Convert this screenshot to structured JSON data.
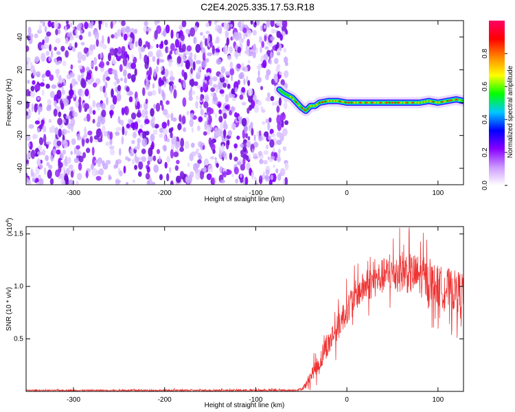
{
  "title": "C2E4.2025.335.17.53.R18",
  "chart_data": [
    {
      "type": "heatmap",
      "xlabel": "Height of straight line (km)",
      "ylabel": "Frequency (Hz)",
      "xlim": [
        -352,
        128
      ],
      "ylim": [
        -50,
        50
      ],
      "xticks": [
        -300,
        -200,
        -100,
        0,
        100
      ],
      "yticks": [
        -40,
        -20,
        0,
        20,
        40
      ],
      "noise_region_x": [
        -352,
        -72
      ],
      "signal_track": {
        "x": [
          -74,
          -70,
          -60,
          -50,
          -45,
          -40,
          -35,
          -30,
          -20,
          -10,
          0,
          20,
          40,
          60,
          80,
          90,
          100,
          110,
          120,
          128
        ],
        "y": [
          8,
          6,
          3,
          -3,
          -5,
          -2,
          -2,
          0,
          1,
          1,
          0,
          0,
          0,
          0,
          0,
          1,
          0,
          1,
          2,
          1
        ]
      },
      "colorbar": {
        "label": "Normalized spectral amplitude",
        "range": [
          0,
          1
        ],
        "ticks": [
          "0.0",
          "0.2",
          "0.4",
          "0.6",
          "0.8"
        ],
        "colors": [
          "#ffffff",
          "#cc99ff",
          "#8800ff",
          "#0000ff",
          "#00c8ff",
          "#00ff00",
          "#ffff00",
          "#ff8800",
          "#ff0000",
          "#ff0066"
        ]
      }
    },
    {
      "type": "line",
      "xlabel": "Height of straight line (km)",
      "ylabel": "SNR (10 * v/v)",
      "y_multiplier": "(x10",
      "y_multiplier_exp": "4",
      "y_multiplier_close": ")",
      "xlim": [
        -352,
        128
      ],
      "ylim": [
        0,
        1.57
      ],
      "xticks": [
        -300,
        -200,
        -100,
        0,
        100
      ],
      "yticks": [
        "0.5",
        "1.0",
        "1.5"
      ],
      "ytick_values": [
        0.5,
        1.0,
        1.5
      ],
      "color": "#ee3333",
      "envelope": {
        "x": [
          -352,
          -60,
          -50,
          -45,
          -40,
          -35,
          -30,
          -25,
          -20,
          -15,
          -10,
          -5,
          0,
          10,
          20,
          30,
          40,
          50,
          60,
          70,
          80,
          90,
          100,
          110,
          120,
          128
        ],
        "y": [
          0.01,
          0.01,
          0.02,
          0.06,
          0.14,
          0.22,
          0.26,
          0.4,
          0.45,
          0.55,
          0.6,
          0.7,
          0.78,
          0.92,
          1.0,
          1.05,
          1.1,
          1.13,
          1.15,
          1.12,
          1.1,
          1.05,
          1.0,
          0.98,
          0.95,
          0.95
        ]
      },
      "spread": {
        "x": [
          -352,
          -50,
          -40,
          -30,
          -20,
          0,
          20,
          40,
          60,
          80,
          100,
          128
        ],
        "y": [
          0.005,
          0.01,
          0.06,
          0.1,
          0.12,
          0.14,
          0.15,
          0.17,
          0.2,
          0.2,
          0.2,
          0.2
        ]
      }
    }
  ]
}
